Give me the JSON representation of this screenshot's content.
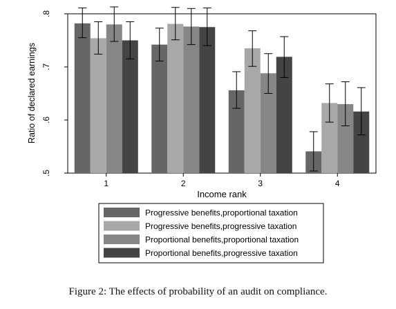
{
  "figure": {
    "caption": "Figure 2: The effects of probability of an audit on compliance."
  },
  "chart_data": {
    "type": "bar",
    "xlabel": "Income rank",
    "ylabel": "Ratio of declared earnings",
    "ylim": [
      0.5,
      0.8
    ],
    "yticks": [
      0.5,
      0.6,
      0.7,
      0.8
    ],
    "ytick_labels": [
      ".5",
      ".6",
      ".7",
      ".8"
    ],
    "categories": [
      "1",
      "2",
      "3",
      "4"
    ],
    "grid": false,
    "legend_position": "bottom",
    "series": [
      {
        "name": "Progressive benefits,proportional taxation",
        "color": "#666666",
        "values": [
          0.782,
          0.742,
          0.656,
          0.541
        ],
        "error_low": [
          0.755,
          0.711,
          0.622,
          0.504
        ],
        "error_high": [
          0.811,
          0.773,
          0.691,
          0.578
        ]
      },
      {
        "name": "Progressive benefits,progressive taxation",
        "color": "#a8a8a8",
        "values": [
          0.754,
          0.781,
          0.735,
          0.632
        ],
        "error_low": [
          0.724,
          0.751,
          0.701,
          0.596
        ],
        "error_high": [
          0.785,
          0.812,
          0.768,
          0.668
        ]
      },
      {
        "name": "Proportional benefits,proportional taxation",
        "color": "#868686",
        "values": [
          0.78,
          0.776,
          0.688,
          0.63
        ],
        "error_low": [
          0.748,
          0.742,
          0.65,
          0.589
        ],
        "error_high": [
          0.813,
          0.81,
          0.725,
          0.672
        ]
      },
      {
        "name": "Proportional benefits,progressive taxation",
        "color": "#444444",
        "values": [
          0.75,
          0.775,
          0.719,
          0.616
        ],
        "error_low": [
          0.715,
          0.74,
          0.68,
          0.572
        ],
        "error_high": [
          0.785,
          0.811,
          0.757,
          0.661
        ]
      }
    ]
  }
}
